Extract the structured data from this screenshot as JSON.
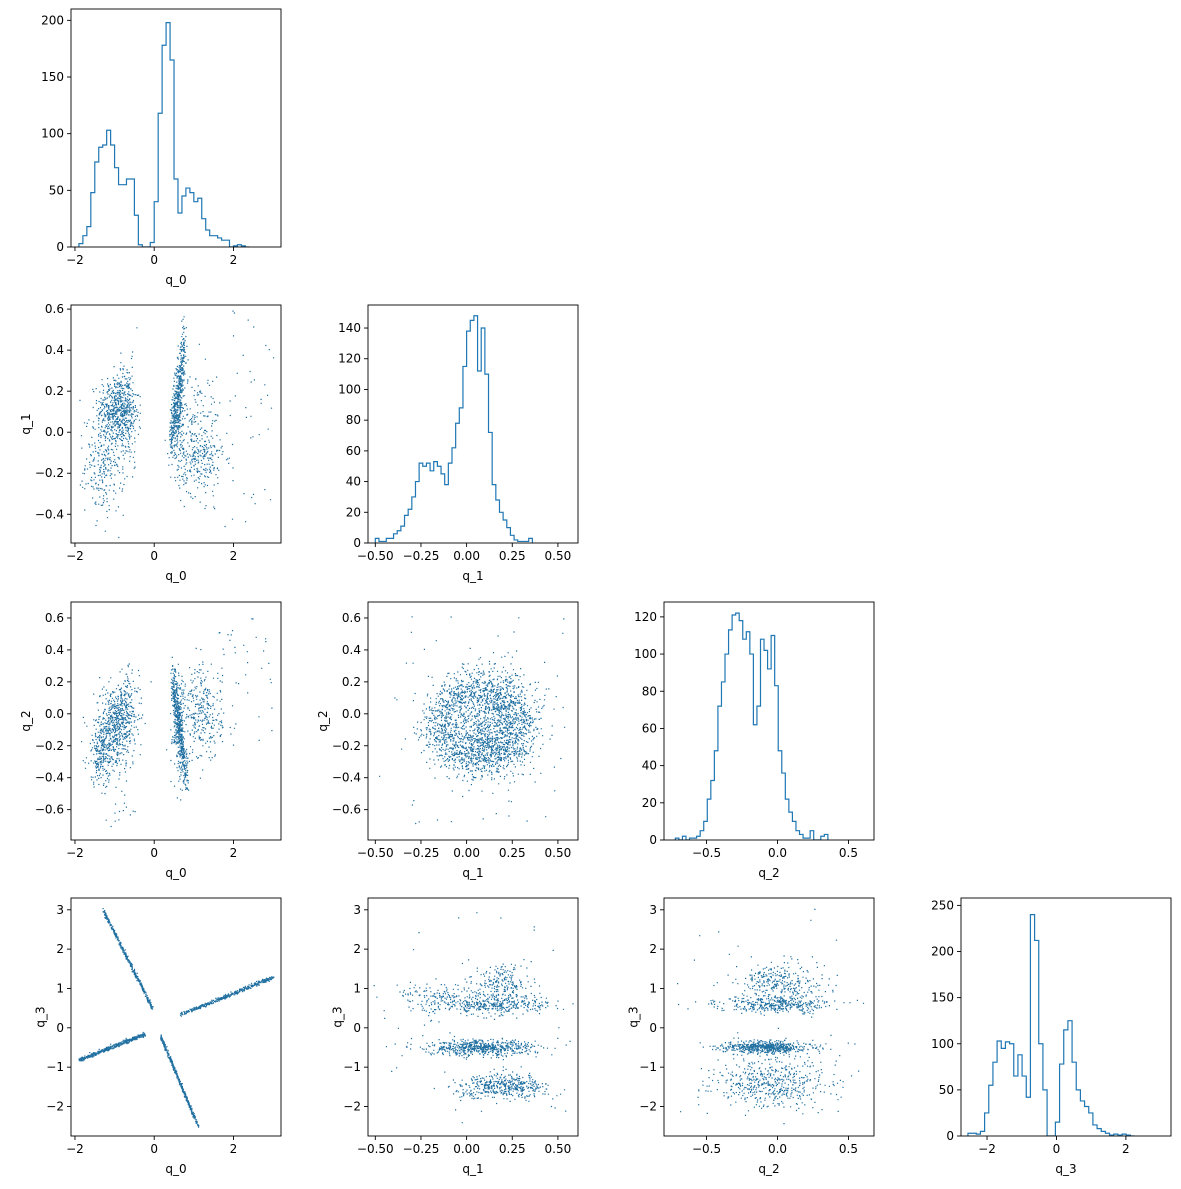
{
  "chart_data": [
    {
      "id": "p00",
      "type": "histogram",
      "row": 0,
      "col": 0,
      "xlabel": "q_0",
      "ylabel": "",
      "xlim": [
        -2.1,
        3.2
      ],
      "ylim": [
        0,
        210
      ],
      "xticks": [
        -2,
        0,
        2
      ],
      "yticks": [
        0,
        50,
        100,
        150,
        200
      ],
      "bin_start": -1.9,
      "bin_width": 0.1,
      "counts": [
        3,
        10,
        18,
        48,
        75,
        88,
        90,
        103,
        90,
        70,
        55,
        55,
        60,
        60,
        28,
        2,
        0,
        0,
        4,
        40,
        118,
        178,
        198,
        165,
        60,
        30,
        45,
        52,
        48,
        40,
        43,
        25,
        15,
        10,
        10,
        8,
        6,
        6,
        0,
        1,
        2,
        1,
        0
      ]
    },
    {
      "id": "p10",
      "type": "scatter",
      "row": 1,
      "col": 0,
      "xlabel": "q_0",
      "ylabel": "q_1",
      "xlim": [
        -2.1,
        3.2
      ],
      "ylim": [
        -0.54,
        0.62
      ],
      "xticks": [
        -2,
        0,
        2
      ],
      "yticks": [
        -0.4,
        -0.2,
        0.0,
        0.2,
        0.4,
        0.6
      ],
      "clusters": [
        {
          "n": 420,
          "type": "gauss",
          "cx": -1.0,
          "cy": 0.12,
          "sx": 0.22,
          "sy": 0.08
        },
        {
          "n": 280,
          "type": "gauss",
          "cx": -1.25,
          "cy": -0.15,
          "sx": 0.25,
          "sy": 0.12
        },
        {
          "n": 220,
          "type": "gauss",
          "cx": -0.7,
          "cy": 0.1,
          "sx": 0.15,
          "sy": 0.12
        },
        {
          "n": 380,
          "type": "line",
          "x0": 0.4,
          "y0": -0.05,
          "x1": 0.75,
          "y1": 0.42,
          "w": 0.07
        },
        {
          "n": 200,
          "type": "gauss",
          "cx": 0.6,
          "cy": 0.1,
          "sx": 0.08,
          "sy": 0.12
        },
        {
          "n": 220,
          "type": "gauss",
          "cx": 1.1,
          "cy": 0.0,
          "sx": 0.28,
          "sy": 0.15
        },
        {
          "n": 150,
          "type": "gauss",
          "cx": 1.1,
          "cy": -0.15,
          "sx": 0.3,
          "sy": 0.08
        },
        {
          "n": 40,
          "type": "uniform",
          "x0": 1.7,
          "x1": 3.0,
          "y0": -0.5,
          "y1": 0.6
        }
      ]
    },
    {
      "id": "p11",
      "type": "histogram",
      "row": 1,
      "col": 1,
      "xlabel": "q_1",
      "ylabel": "",
      "xlim": [
        -0.54,
        0.61
      ],
      "ylim": [
        0,
        155
      ],
      "xticks": [
        -0.5,
        -0.25,
        0.0,
        0.25,
        0.5
      ],
      "yticks": [
        0,
        20,
        40,
        60,
        80,
        100,
        120,
        140
      ],
      "bin_start": -0.5,
      "bin_width": 0.02,
      "counts": [
        3,
        1,
        1,
        3,
        3,
        6,
        8,
        11,
        18,
        22,
        30,
        40,
        52,
        50,
        52,
        47,
        53,
        50,
        45,
        38,
        52,
        62,
        78,
        88,
        115,
        138,
        145,
        148,
        112,
        140,
        110,
        72,
        38,
        28,
        20,
        15,
        10,
        5,
        2,
        1,
        1,
        1,
        3
      ]
    },
    {
      "id": "p20",
      "type": "scatter",
      "row": 2,
      "col": 0,
      "xlabel": "q_0",
      "ylabel": "q_2",
      "xlim": [
        -2.1,
        3.2
      ],
      "ylim": [
        -0.79,
        0.7
      ],
      "xticks": [
        -2,
        0,
        2
      ],
      "yticks": [
        -0.6,
        -0.4,
        -0.2,
        0.0,
        0.2,
        0.4,
        0.6
      ],
      "clusters": [
        {
          "n": 500,
          "type": "gauss",
          "cx": -1.0,
          "cy": -0.08,
          "sx": 0.25,
          "sy": 0.13
        },
        {
          "n": 200,
          "type": "gauss",
          "cx": -1.35,
          "cy": -0.25,
          "sx": 0.18,
          "sy": 0.1
        },
        {
          "n": 150,
          "type": "gauss",
          "cx": -0.7,
          "cy": 0.05,
          "sx": 0.15,
          "sy": 0.1
        },
        {
          "n": 420,
          "type": "line",
          "x0": 0.45,
          "y0": 0.22,
          "x1": 0.8,
          "y1": -0.42,
          "w": 0.07
        },
        {
          "n": 200,
          "type": "gauss",
          "cx": 0.6,
          "cy": -0.05,
          "sx": 0.08,
          "sy": 0.15
        },
        {
          "n": 300,
          "type": "gauss",
          "cx": 1.2,
          "cy": 0.0,
          "sx": 0.25,
          "sy": 0.15
        },
        {
          "n": 40,
          "type": "uniform",
          "x0": 1.6,
          "x1": 3.0,
          "y0": -0.2,
          "y1": 0.6
        },
        {
          "n": 15,
          "type": "gauss",
          "cx": -0.9,
          "cy": -0.6,
          "sx": 0.2,
          "sy": 0.05
        }
      ]
    },
    {
      "id": "p21",
      "type": "scatter",
      "row": 2,
      "col": 1,
      "xlabel": "q_1",
      "ylabel": "q_2",
      "xlim": [
        -0.54,
        0.61
      ],
      "ylim": [
        -0.79,
        0.7
      ],
      "xticks": [
        -0.5,
        -0.25,
        0.0,
        0.25,
        0.5
      ],
      "yticks": [
        -0.6,
        -0.4,
        -0.2,
        0.0,
        0.2,
        0.4,
        0.6
      ],
      "clusters": [
        {
          "n": 1500,
          "type": "ring",
          "cx": 0.07,
          "cy": -0.06,
          "r": 0.22,
          "rs": 0.07,
          "ys": 1.0
        },
        {
          "n": 400,
          "type": "gauss",
          "cx": 0.15,
          "cy": 0.05,
          "sx": 0.1,
          "sy": 0.15
        },
        {
          "n": 400,
          "type": "gauss",
          "cx": 0.08,
          "cy": -0.2,
          "sx": 0.15,
          "sy": 0.1
        },
        {
          "n": 60,
          "type": "uniform",
          "x0": -0.5,
          "x1": 0.55,
          "y0": -0.7,
          "y1": 0.62
        }
      ]
    },
    {
      "id": "p22",
      "type": "histogram",
      "row": 2,
      "col": 2,
      "xlabel": "q_2",
      "ylabel": "",
      "xlim": [
        -0.8,
        0.68
      ],
      "ylim": [
        0,
        128
      ],
      "xticks": [
        -0.5,
        0.0,
        0.5
      ],
      "yticks": [
        0,
        20,
        40,
        60,
        80,
        100,
        120
      ],
      "bin_start": -0.72,
      "bin_width": 0.025,
      "counts": [
        1,
        0,
        2,
        0,
        1,
        1,
        2,
        5,
        10,
        22,
        32,
        48,
        72,
        85,
        100,
        113,
        121,
        122,
        118,
        108,
        112,
        100,
        62,
        72,
        108,
        102,
        92,
        110,
        83,
        48,
        36,
        22,
        15,
        10,
        5,
        3,
        1,
        1,
        5,
        0,
        0,
        2,
        3
      ]
    },
    {
      "id": "p30",
      "type": "scatter",
      "row": 3,
      "col": 0,
      "xlabel": "q_0",
      "ylabel": "q_3",
      "xlim": [
        -2.1,
        3.2
      ],
      "ylim": [
        -2.75,
        3.3
      ],
      "xticks": [
        -2,
        0,
        2
      ],
      "yticks": [
        -2,
        -1,
        0,
        1,
        2,
        3
      ],
      "clusters": [
        {
          "n": 400,
          "type": "line",
          "x0": -1.9,
          "y0": -0.8,
          "x1": -0.25,
          "y1": -0.15,
          "w": 0.025
        },
        {
          "n": 400,
          "type": "line",
          "x0": -0.05,
          "y0": 0.5,
          "x1": -1.3,
          "y1": 3.0,
          "w": 0.025
        },
        {
          "n": 400,
          "type": "line",
          "x0": 0.65,
          "y0": 0.35,
          "x1": 3.0,
          "y1": 1.3,
          "w": 0.025
        },
        {
          "n": 400,
          "type": "line",
          "x0": 0.15,
          "y0": -0.2,
          "x1": 1.1,
          "y1": -2.5,
          "w": 0.025
        }
      ]
    },
    {
      "id": "p31",
      "type": "scatter",
      "row": 3,
      "col": 1,
      "xlabel": "q_1",
      "ylabel": "q_3",
      "xlim": [
        -0.54,
        0.61
      ],
      "ylim": [
        -2.75,
        3.3
      ],
      "xticks": [
        -0.5,
        -0.25,
        0.0,
        0.25,
        0.5
      ],
      "yticks": [
        -2,
        -1,
        0,
        1,
        2,
        3
      ],
      "clusters": [
        {
          "n": 600,
          "type": "gauss",
          "cx": 0.08,
          "cy": -0.5,
          "sx": 0.15,
          "sy": 0.1
        },
        {
          "n": 450,
          "type": "arc",
          "cx": 0.2,
          "cy": -1.45,
          "sx": 0.12,
          "sy": 0.3,
          "k": -1.6
        },
        {
          "n": 350,
          "type": "gauss",
          "cx": 0.15,
          "cy": 0.6,
          "sx": 0.15,
          "sy": 0.12
        },
        {
          "n": 200,
          "type": "gauss",
          "cx": 0.2,
          "cy": 1.15,
          "sx": 0.08,
          "sy": 0.25
        },
        {
          "n": 150,
          "type": "gauss",
          "cx": -0.15,
          "cy": 0.8,
          "sx": 0.12,
          "sy": 0.2
        },
        {
          "n": 40,
          "type": "uniform",
          "x0": -0.5,
          "x1": 0.55,
          "y0": -2.5,
          "y1": 3.1
        }
      ]
    },
    {
      "id": "p32",
      "type": "scatter",
      "row": 3,
      "col": 2,
      "xlabel": "q_2",
      "ylabel": "q_3",
      "xlim": [
        -0.8,
        0.68
      ],
      "ylim": [
        -2.75,
        3.3
      ],
      "xticks": [
        -0.5,
        0.0,
        0.5
      ],
      "yticks": [
        -2,
        -1,
        0,
        1,
        2,
        3
      ],
      "clusters": [
        {
          "n": 600,
          "type": "gauss",
          "cx": -0.08,
          "cy": -0.48,
          "sx": 0.15,
          "sy": 0.08
        },
        {
          "n": 500,
          "type": "gauss",
          "cx": -0.05,
          "cy": -1.4,
          "sx": 0.2,
          "sy": 0.3
        },
        {
          "n": 350,
          "type": "gauss",
          "cx": 0.0,
          "cy": 0.6,
          "sx": 0.2,
          "sy": 0.1
        },
        {
          "n": 300,
          "type": "gauss",
          "cx": 0.0,
          "cy": 1.15,
          "sx": 0.15,
          "sy": 0.25
        },
        {
          "n": 40,
          "type": "uniform",
          "x0": -0.72,
          "x1": 0.6,
          "y0": -2.2,
          "y1": 3.1
        }
      ]
    },
    {
      "id": "p33",
      "type": "histogram",
      "row": 3,
      "col": 3,
      "xlabel": "q_3",
      "ylabel": "",
      "xlim": [
        -2.75,
        3.3
      ],
      "ylim": [
        0,
        258
      ],
      "xticks": [
        -2,
        0,
        2
      ],
      "yticks": [
        0,
        50,
        100,
        150,
        200,
        250
      ],
      "bin_start": -2.55,
      "bin_width": 0.12,
      "counts": [
        3,
        3,
        2,
        5,
        25,
        55,
        80,
        103,
        95,
        102,
        100,
        65,
        88,
        65,
        42,
        240,
        212,
        100,
        50,
        0,
        0,
        15,
        78,
        115,
        125,
        80,
        50,
        38,
        32,
        25,
        12,
        8,
        5,
        3,
        1,
        2,
        1,
        2,
        1,
        0
      ]
    }
  ],
  "colors": {
    "accent": "#1f77b4",
    "scatter": "#1f6fa0",
    "axis": "#000000"
  }
}
